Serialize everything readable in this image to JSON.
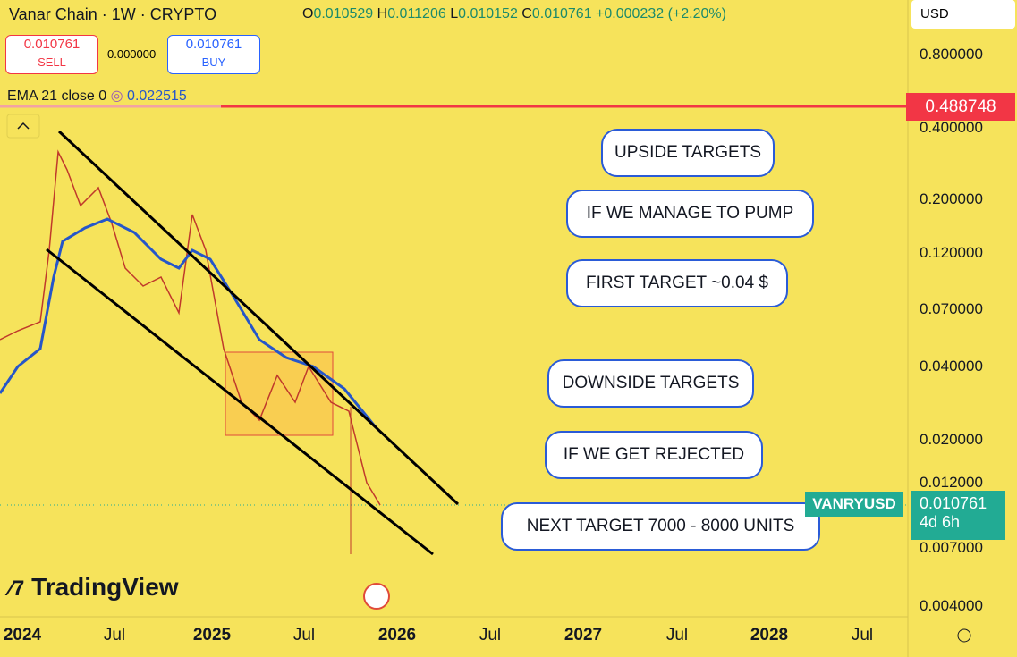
{
  "header": {
    "symbol": "Vanar Chain · 1W · CRYPTO",
    "ohlc": [
      {
        "key": "O",
        "value": "0.010529"
      },
      {
        "key": "H",
        "value": "0.011206"
      },
      {
        "key": "L",
        "value": "0.010152"
      },
      {
        "key": "C",
        "value": "0.010761"
      }
    ],
    "change": "+0.000232 (+2.20%)"
  },
  "trade": {
    "sell_price": "0.010761",
    "sell": "SELL",
    "spread": "0.000000",
    "buy_price": "0.010761",
    "buy": "BUY"
  },
  "indicator": {
    "name": "EMA 21 close 0",
    "value": "0.022515"
  },
  "currency": "USD",
  "price_axis": [
    "0.800000",
    "0.400000",
    "0.200000",
    "0.120000",
    "0.070000",
    "0.040000",
    "0.020000",
    "0.012000",
    "0.007000",
    "0.004000"
  ],
  "time_axis": [
    "2024",
    "Jul",
    "2025",
    "Jul",
    "2026",
    "Jul",
    "2027",
    "Jul",
    "2028",
    "Jul"
  ],
  "annotations": [
    "UPSIDE TARGETS",
    "IF WE MANAGE TO PUMP",
    "FIRST TARGET ~0.04 $",
    "DOWNSIDE TARGETS",
    "IF WE GET REJECTED",
    "NEXT TARGET 7000 - 8000 UNITS"
  ],
  "price_tags": {
    "alert": "0.488748",
    "ticker": "VANRYUSD",
    "last": "0.010761",
    "countdown": "4d 6h"
  },
  "logo": "TradingView"
}
